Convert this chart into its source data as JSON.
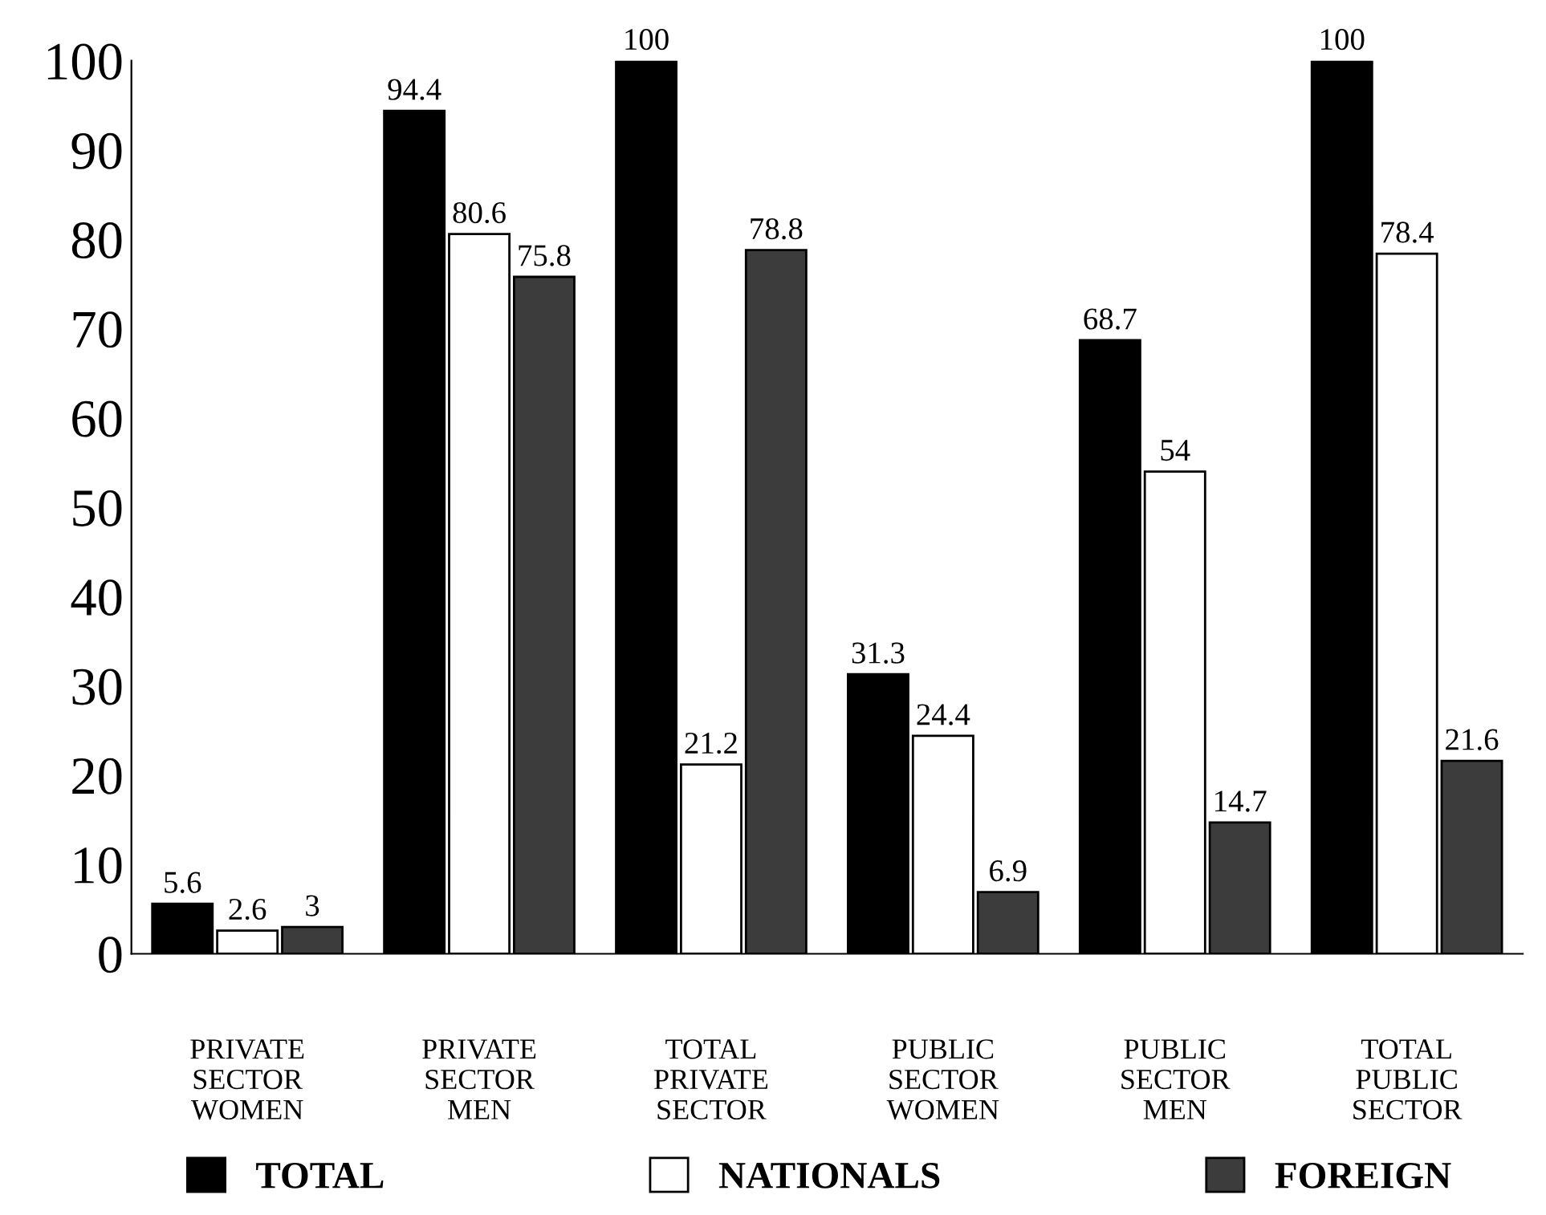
{
  "chart_data": {
    "type": "bar",
    "categories": [
      "PRIVATE\nSECTOR\nWOMEN",
      "PRIVATE\nSECTOR\nMEN",
      "TOTAL\nPRIVATE\nSECTOR",
      "PUBLIC\nSECTOR\nWOMEN",
      "PUBLIC\nSECTOR\nMEN",
      "TOTAL\nPUBLIC\nSECTOR"
    ],
    "series": [
      {
        "name": "TOTAL",
        "color": "#000000",
        "values": [
          5.6,
          94.4,
          100,
          31.3,
          68.7,
          100
        ]
      },
      {
        "name": "NATIONALS",
        "color": "#ffffff",
        "values": [
          2.6,
          80.6,
          21.2,
          24.4,
          54,
          78.4
        ]
      },
      {
        "name": "FOREIGN",
        "color": "#3c3c3c",
        "values": [
          3,
          75.8,
          78.8,
          6.9,
          14.7,
          21.6
        ]
      }
    ],
    "ylim": [
      0,
      100
    ],
    "yticks": [
      0,
      10,
      20,
      30,
      40,
      50,
      60,
      70,
      80,
      90,
      100
    ],
    "data_labels": true,
    "grid": false,
    "legend": "bottom"
  }
}
